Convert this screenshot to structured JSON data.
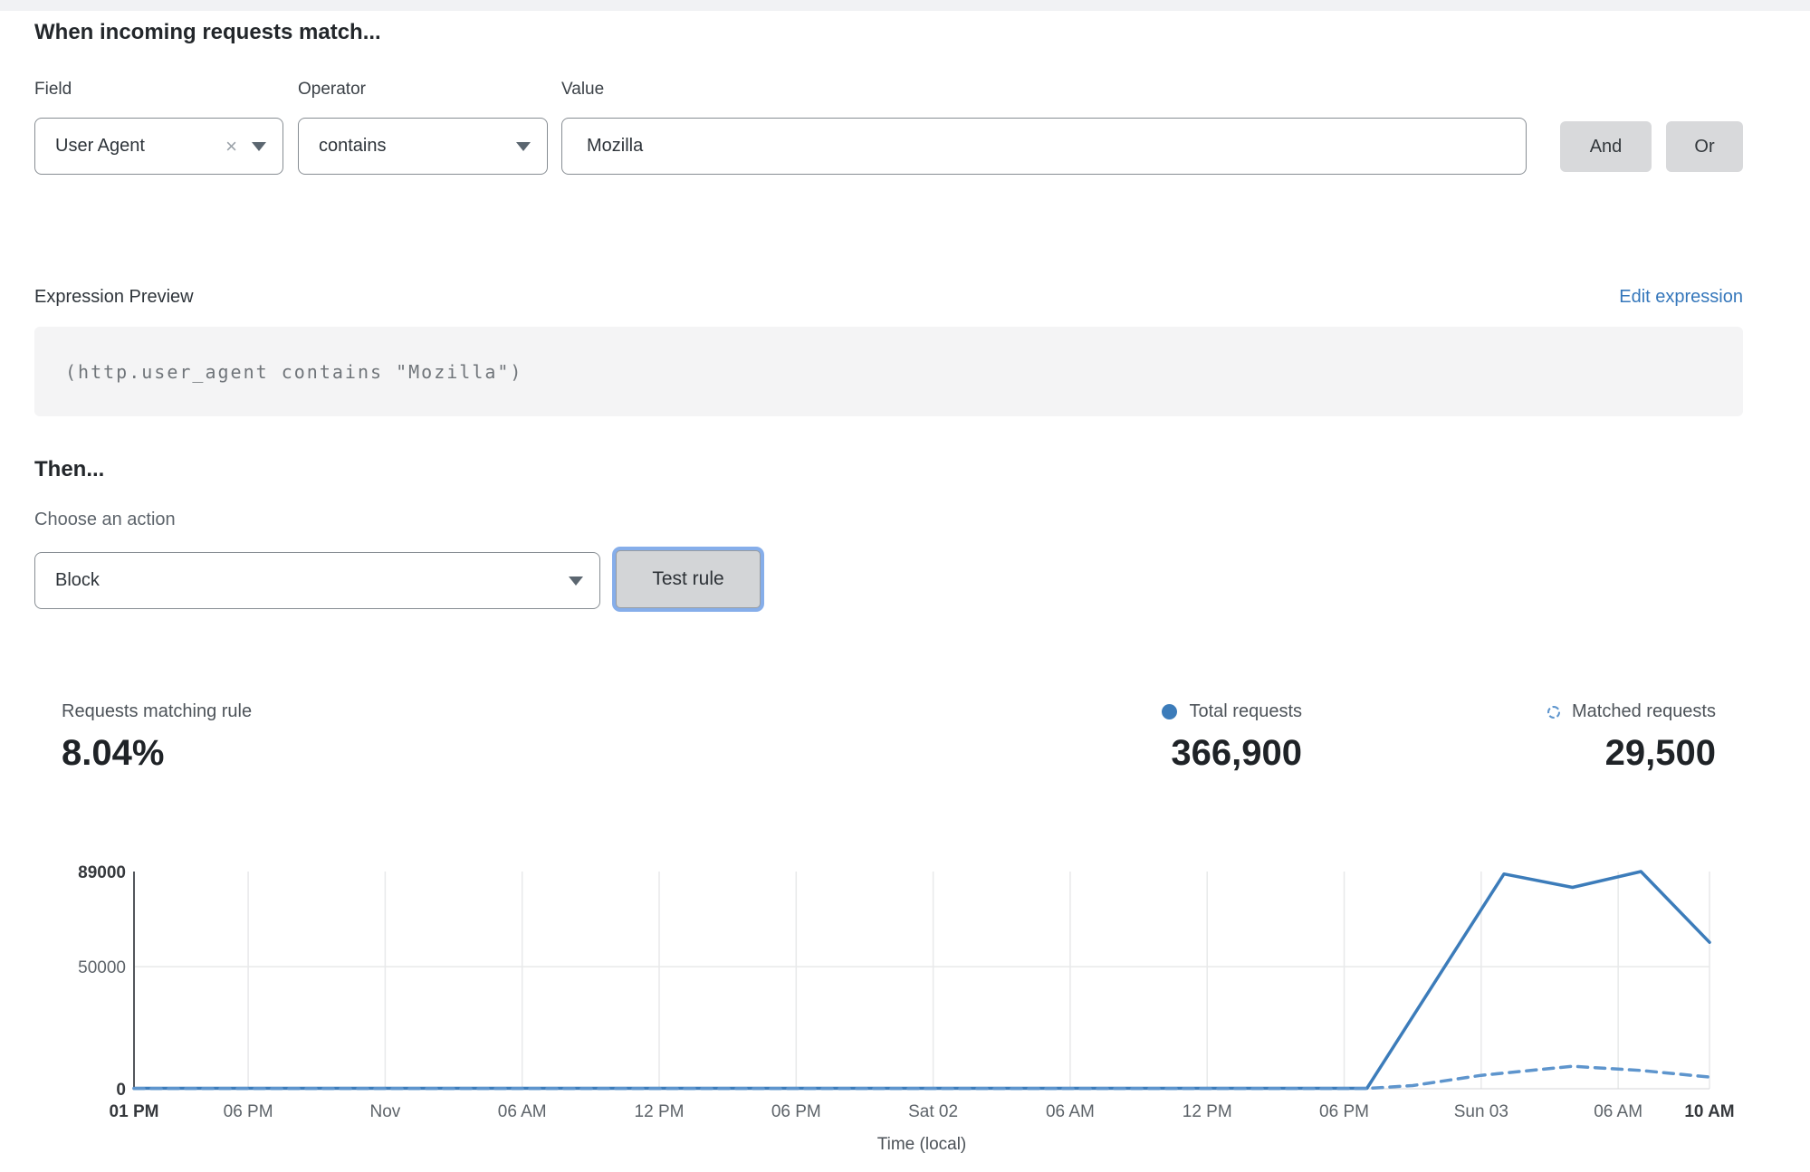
{
  "match_section": {
    "heading": "When incoming requests match...",
    "field": {
      "label": "Field",
      "value": "User Agent"
    },
    "operator": {
      "label": "Operator",
      "value": "contains"
    },
    "value": {
      "label": "Value",
      "value": "Mozilla"
    },
    "and_label": "And",
    "or_label": "Or"
  },
  "expression": {
    "label": "Expression Preview",
    "edit_link": "Edit expression",
    "code": "(http.user_agent contains \"Mozilla\")"
  },
  "then_section": {
    "heading": "Then...",
    "action_label": "Choose an action",
    "action_value": "Block",
    "test_button": "Test rule"
  },
  "stats": {
    "matching_label": "Requests matching rule",
    "matching_value": "8.04%",
    "total_label": "Total requests",
    "total_value": "366,900",
    "matched_label": "Matched requests",
    "matched_value": "29,500"
  },
  "colors": {
    "accent_blue": "#3c7cba",
    "dashed_blue": "#5e95cd",
    "link_blue": "#3577bb",
    "button_gray": "#d8d9db",
    "focus_ring": "#86aeea",
    "gridline": "#e8e9ea",
    "axis_dark": "#53575c",
    "tick_text": "#5d6369",
    "tick_text_bold": "#36393d"
  },
  "chart_data": {
    "type": "line",
    "title": "",
    "xlabel": "Time (local)",
    "ylabel": "",
    "ylim": [
      0,
      89000
    ],
    "x_span_hours": 69,
    "grid": true,
    "legend_position": "top-right",
    "y_ticks": [
      {
        "value": 0,
        "label": "0",
        "bold": true
      },
      {
        "value": 50000,
        "label": "50000",
        "bold": false
      },
      {
        "value": 89000,
        "label": "89000",
        "bold": true
      }
    ],
    "x_ticks": [
      {
        "t": 0,
        "label": "01 PM",
        "bold": true
      },
      {
        "t": 5,
        "label": "06 PM",
        "bold": false
      },
      {
        "t": 11,
        "label": "Nov",
        "bold": false
      },
      {
        "t": 17,
        "label": "06 AM",
        "bold": false
      },
      {
        "t": 23,
        "label": "12 PM",
        "bold": false
      },
      {
        "t": 29,
        "label": "06 PM",
        "bold": false
      },
      {
        "t": 35,
        "label": "Sat 02",
        "bold": false
      },
      {
        "t": 41,
        "label": "06 AM",
        "bold": false
      },
      {
        "t": 47,
        "label": "12 PM",
        "bold": false
      },
      {
        "t": 53,
        "label": "06 PM",
        "bold": false
      },
      {
        "t": 59,
        "label": "Sun 03",
        "bold": false
      },
      {
        "t": 65,
        "label": "06 AM",
        "bold": false
      },
      {
        "t": 69,
        "label": "10 AM",
        "bold": true
      }
    ],
    "series": [
      {
        "name": "Total requests",
        "style": "solid",
        "color": "#3c7cba",
        "points": [
          [
            0,
            200
          ],
          [
            27,
            200
          ],
          [
            54,
            200
          ],
          [
            60,
            88000
          ],
          [
            63,
            82500
          ],
          [
            66,
            89000
          ],
          [
            69,
            60000
          ]
        ]
      },
      {
        "name": "Matched requests",
        "style": "dashed",
        "color": "#5e95cd",
        "points": [
          [
            0,
            100
          ],
          [
            27,
            100
          ],
          [
            54,
            100
          ],
          [
            56,
            1300
          ],
          [
            59,
            5500
          ],
          [
            63,
            9200
          ],
          [
            66,
            7500
          ],
          [
            69,
            4800
          ]
        ]
      }
    ]
  }
}
